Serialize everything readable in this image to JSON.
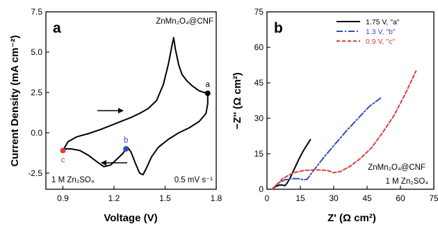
{
  "chart_data": [
    {
      "panel": "a",
      "type": "line",
      "xlabel": "Voltage (V)",
      "ylabel": "Current Density (mA cm⁻²)",
      "xlim": [
        0.8,
        1.8
      ],
      "ylim": [
        -3.5,
        7.5
      ],
      "xticks": [
        "0.9",
        "1.2",
        "1.5",
        "1.8"
      ],
      "yticks": [
        "-2.5",
        "0.0",
        "2.5",
        "5.0",
        "7.5"
      ],
      "grid": false,
      "annotations": {
        "material": "ZnMn₂O₄@CNF",
        "electrolyte": "1 M Zn₂SO₄",
        "scan_rate": "0.5 mV s⁻¹"
      },
      "series": [
        {
          "color": "#000000",
          "x": [
            0.9,
            0.93,
            0.98,
            1.05,
            1.12,
            1.18,
            1.24,
            1.3,
            1.35,
            1.4,
            1.45,
            1.49,
            1.52,
            1.54,
            1.55,
            1.56,
            1.58,
            1.6,
            1.63,
            1.66,
            1.7,
            1.73,
            1.75,
            1.75,
            1.74,
            1.7,
            1.64,
            1.58,
            1.52,
            1.46,
            1.42,
            1.39,
            1.37,
            1.35,
            1.33,
            1.3,
            1.28,
            1.27,
            1.25,
            1.22,
            1.18,
            1.14,
            1.1,
            1.05,
            1.0,
            0.95,
            0.91,
            0.9
          ],
          "y": [
            -1.1,
            -0.55,
            -0.25,
            -0.05,
            0.2,
            0.45,
            0.7,
            0.95,
            1.2,
            1.5,
            2.0,
            3.0,
            4.3,
            5.4,
            5.9,
            5.2,
            4.2,
            3.6,
            3.2,
            2.9,
            2.6,
            2.5,
            2.45,
            1.8,
            1.2,
            0.7,
            0.3,
            0.0,
            -0.4,
            -0.9,
            -1.5,
            -2.2,
            -2.6,
            -2.5,
            -2.0,
            -1.2,
            -0.9,
            -1.0,
            -1.3,
            -1.6,
            -2.0,
            -2.1,
            -1.8,
            -1.4,
            -1.1,
            -1.0,
            -1.0,
            -1.1
          ]
        }
      ],
      "points": [
        {
          "label": "a",
          "x": 1.75,
          "y": 2.45,
          "color": "#000000"
        },
        {
          "label": "b",
          "x": 1.27,
          "y": -1.0,
          "color": "#2e4fb8"
        },
        {
          "label": "c",
          "x": 0.9,
          "y": -1.1,
          "color": "#e23c3c"
        }
      ]
    },
    {
      "panel": "b",
      "type": "line",
      "xlabel": "Z' (Ω cm²)",
      "ylabel": "−Z'' (Ω cm²)",
      "xlim": [
        0,
        75
      ],
      "ylim": [
        0,
        75
      ],
      "xticks": [
        "0",
        "15",
        "30",
        "45",
        "60",
        "75"
      ],
      "yticks": [
        "0",
        "15",
        "30",
        "45",
        "60",
        "75"
      ],
      "grid": false,
      "legend_position": "top-right",
      "annotations": {
        "material": "ZnMn₂O₄@CNF",
        "electrolyte": "1 M Zn₂SO₄"
      },
      "series": [
        {
          "name": "1.75 V, \"a\"",
          "color": "#000000",
          "dash": "solid",
          "x": [
            2.5,
            4.0,
            5.5,
            7.0,
            8.0,
            9.0,
            10.5,
            12.5,
            14.5,
            16.5,
            18.5,
            19.5
          ],
          "y": [
            0.2,
            1.2,
            1.8,
            1.8,
            1.5,
            2.5,
            5.0,
            9.0,
            13.0,
            16.5,
            19.5,
            21.0
          ]
        },
        {
          "name": "1.3 V,   \"b\"",
          "color": "#2e4fb8",
          "dash": "dashdot",
          "x": [
            2.5,
            5.0,
            8.0,
            11.0,
            14.0,
            16.5,
            18.0,
            21.0,
            26.0,
            31.0,
            36.0,
            41.0,
            46.0,
            51.0
          ],
          "y": [
            0.2,
            2.5,
            4.0,
            4.5,
            4.5,
            4.0,
            4.2,
            8.0,
            14.0,
            19.5,
            25.0,
            30.0,
            35.0,
            38.5
          ]
        },
        {
          "name": "0.9 V,   \"c\"",
          "color": "#e23c3c",
          "dash": "dashed",
          "x": [
            2.5,
            7.0,
            12.0,
            17.0,
            22.0,
            27.0,
            30.0,
            33.0,
            37.0,
            42.0,
            47.0,
            52.0,
            57.0,
            62.0,
            67.0
          ],
          "y": [
            0.2,
            4.5,
            7.0,
            8.0,
            8.2,
            8.0,
            7.0,
            7.5,
            9.5,
            13.0,
            17.5,
            24.0,
            31.0,
            40.0,
            50.0
          ]
        }
      ]
    }
  ]
}
